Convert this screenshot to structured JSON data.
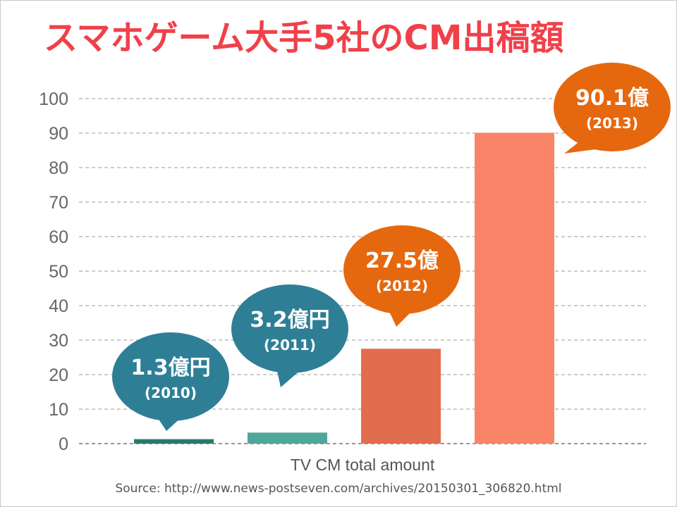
{
  "title": "スマホゲーム大手5社のCM出稿額",
  "source": "Source: http://www.news-postseven.com/archives/20150301_306820.html",
  "colors": {
    "title": "#f0404a",
    "bubble_teal": "#2e7f96",
    "bubble_orange": "#e5680f",
    "bar_2010": "#267a6e",
    "bar_2011": "#4fa69a",
    "bar_2012": "#e26c4e",
    "bar_2013": "#f98468"
  },
  "chart_data": {
    "type": "bar",
    "categories": [
      "2010",
      "2011",
      "2012",
      "2013"
    ],
    "values": [
      1.3,
      3.2,
      27.5,
      90.1
    ],
    "xlabel": "TV CM total amount",
    "ylabel": "",
    "ylim": [
      0,
      100
    ],
    "yticks": [
      0,
      10,
      20,
      30,
      40,
      50,
      60,
      70,
      80,
      90,
      100
    ],
    "grid": true,
    "callouts": [
      {
        "value_label": "1.3億円",
        "year_label": "(2010)",
        "color": "teal"
      },
      {
        "value_label": "3.2億円",
        "year_label": "(2011)",
        "color": "teal"
      },
      {
        "value_label": "27.5億",
        "year_label": "(2012)",
        "color": "orange"
      },
      {
        "value_label": "90.1億",
        "year_label": "(2013)",
        "color": "orange"
      }
    ]
  }
}
